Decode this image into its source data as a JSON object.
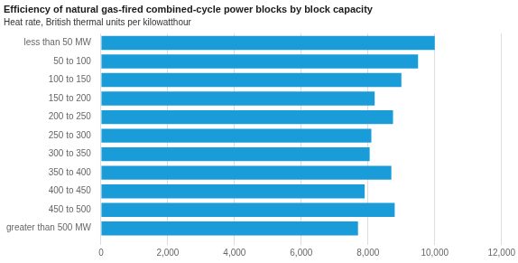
{
  "chart_data": {
    "type": "bar",
    "orientation": "horizontal",
    "title": "Efficiency of natural gas-fired combined-cycle power blocks by block capacity",
    "subtitle": "Heat rate, British thermal units per kilowatthour",
    "categories": [
      "less than 50 MW",
      "50 to 100",
      "100 to 150",
      "150 to 200",
      "200 to 250",
      "250 to 300",
      "300 to 350",
      "350 to 400",
      "400 to 450",
      "450 to 500",
      "greater than 500 MW"
    ],
    "values": [
      10000,
      9500,
      9000,
      8200,
      8750,
      8100,
      8050,
      8700,
      7900,
      8800,
      7700
    ],
    "color": "#1a9cd8",
    "xlim": [
      0,
      12000
    ],
    "xticks": [
      0,
      {
        "value": 2000,
        "label": "2,000"
      },
      {
        "value": 4000,
        "label": "4,000"
      },
      {
        "value": 6000,
        "label": "6,000"
      },
      {
        "value": 8000,
        "label": "8,000"
      },
      {
        "value": 10000,
        "label": "10,000"
      },
      {
        "value": 12000,
        "label": "12,000"
      }
    ],
    "grid": true
  }
}
